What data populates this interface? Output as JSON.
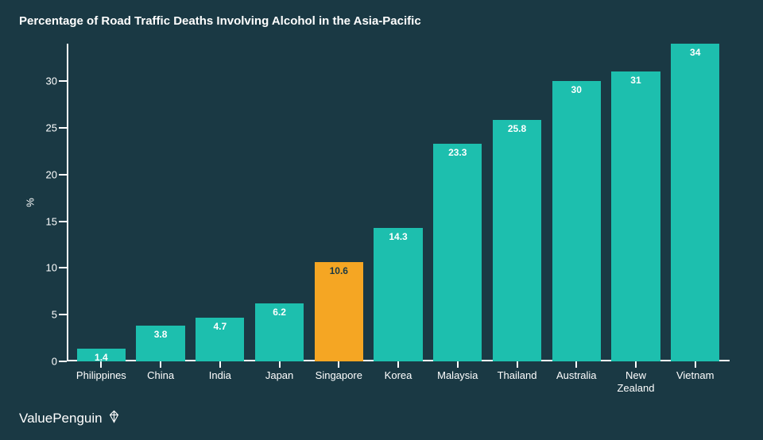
{
  "chart": {
    "type": "bar",
    "title": "Percentage of Road Traffic Deaths Involving Alcohol in the Asia-Pacific",
    "title_fontsize": 15,
    "background_color": "#1a3944",
    "text_color": "#ffffff",
    "axis_color": "#ffffff",
    "y_axis_title": "%",
    "label_fontsize": 13,
    "bar_label_fontsize": 12,
    "ylim": [
      0,
      34
    ],
    "yticks": [
      0,
      5,
      10,
      15,
      20,
      25,
      30
    ],
    "bar_width": 0.82,
    "categories": [
      "Philippines",
      "China",
      "India",
      "Japan",
      "Singapore",
      "Korea",
      "Malaysia",
      "Thailand",
      "Australia",
      "New\nZealand",
      "Vietnam"
    ],
    "values": [
      1.4,
      3.8,
      4.7,
      6.2,
      10.6,
      14.3,
      23.3,
      25.8,
      30,
      31,
      34
    ],
    "bar_colors": [
      "#1dbfae",
      "#1dbfae",
      "#1dbfae",
      "#1dbfae",
      "#f5a623",
      "#1dbfae",
      "#1dbfae",
      "#1dbfae",
      "#1dbfae",
      "#1dbfae",
      "#1dbfae"
    ],
    "value_label_colors": [
      "#ffffff",
      "#ffffff",
      "#ffffff",
      "#ffffff",
      "#1a3944",
      "#ffffff",
      "#ffffff",
      "#ffffff",
      "#ffffff",
      "#ffffff",
      "#ffffff"
    ]
  },
  "brand": {
    "name": "ValuePenguin",
    "text_color": "#ffffff"
  }
}
